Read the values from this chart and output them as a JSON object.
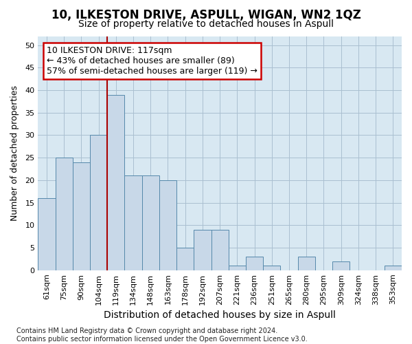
{
  "title": "10, ILKESTON DRIVE, ASPULL, WIGAN, WN2 1QZ",
  "subtitle": "Size of property relative to detached houses in Aspull",
  "xlabel": "Distribution of detached houses by size in Aspull",
  "ylabel": "Number of detached properties",
  "categories": [
    "61sqm",
    "75sqm",
    "90sqm",
    "104sqm",
    "119sqm",
    "134sqm",
    "148sqm",
    "163sqm",
    "178sqm",
    "192sqm",
    "207sqm",
    "221sqm",
    "236sqm",
    "251sqm",
    "265sqm",
    "280sqm",
    "295sqm",
    "309sqm",
    "324sqm",
    "338sqm",
    "353sqm"
  ],
  "values": [
    16,
    25,
    24,
    30,
    39,
    21,
    21,
    20,
    5,
    9,
    9,
    1,
    3,
    1,
    0,
    3,
    0,
    2,
    0,
    0,
    1
  ],
  "bar_color": "#c8d8e8",
  "bar_edge_color": "#5588aa",
  "vline_index": 4,
  "vline_color": "#aa0000",
  "annotation_line1": "10 ILKESTON DRIVE: 117sqm",
  "annotation_line2": "← 43% of detached houses are smaller (89)",
  "annotation_line3": "57% of semi-detached houses are larger (119) →",
  "annotation_box_facecolor": "#ffffff",
  "annotation_box_edgecolor": "#cc0000",
  "ylim": [
    0,
    52
  ],
  "yticks": [
    0,
    5,
    10,
    15,
    20,
    25,
    30,
    35,
    40,
    45,
    50
  ],
  "grid_color": "#aabfd0",
  "bg_color": "#d8e8f2",
  "footnote": "Contains HM Land Registry data © Crown copyright and database right 2024.\nContains public sector information licensed under the Open Government Licence v3.0.",
  "title_fontsize": 12,
  "subtitle_fontsize": 10,
  "xlabel_fontsize": 10,
  "ylabel_fontsize": 9,
  "tick_fontsize": 8,
  "annot_fontsize": 9,
  "footnote_fontsize": 7
}
